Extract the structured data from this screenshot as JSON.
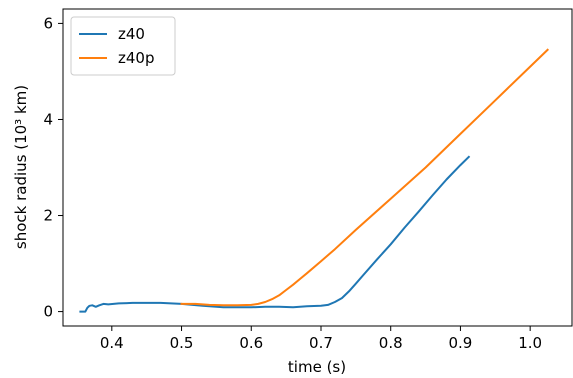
{
  "chart_data": {
    "type": "line",
    "xlabel": "time (s)",
    "ylabel": "shock radius (10³ km)",
    "xlim": [
      0.33,
      1.06
    ],
    "ylim": [
      -0.3,
      6.3
    ],
    "x_ticks": [
      0.4,
      0.5,
      0.6,
      0.7,
      0.8,
      0.9,
      1.0
    ],
    "y_ticks": [
      0,
      2,
      4,
      6
    ],
    "x_tick_labels": [
      "0.4",
      "0.5",
      "0.6",
      "0.7",
      "0.8",
      "0.9",
      "1.0"
    ],
    "y_tick_labels": [
      "0",
      "2",
      "4",
      "6"
    ],
    "grid": false,
    "legend_position": "top-left",
    "colors": {
      "z40": "#1f77b4",
      "z40p": "#ff7f0e"
    },
    "series": [
      {
        "name": "z40",
        "color": "#1f77b4",
        "x": [
          0.355,
          0.362,
          0.365,
          0.368,
          0.372,
          0.377,
          0.382,
          0.388,
          0.395,
          0.41,
          0.43,
          0.45,
          0.47,
          0.5,
          0.53,
          0.56,
          0.6,
          0.62,
          0.64,
          0.66,
          0.68,
          0.7,
          0.71,
          0.72,
          0.73,
          0.74,
          0.75,
          0.76,
          0.78,
          0.8,
          0.82,
          0.84,
          0.86,
          0.88,
          0.9,
          0.912
        ],
        "y": [
          0.0,
          0.0,
          0.08,
          0.12,
          0.13,
          0.1,
          0.13,
          0.16,
          0.15,
          0.17,
          0.18,
          0.18,
          0.18,
          0.16,
          0.12,
          0.09,
          0.09,
          0.1,
          0.1,
          0.09,
          0.11,
          0.12,
          0.14,
          0.2,
          0.28,
          0.42,
          0.58,
          0.75,
          1.08,
          1.4,
          1.75,
          2.08,
          2.42,
          2.75,
          3.05,
          3.22
        ]
      },
      {
        "name": "z40p",
        "color": "#ff7f0e",
        "x": [
          0.5,
          0.52,
          0.54,
          0.56,
          0.58,
          0.6,
          0.61,
          0.62,
          0.63,
          0.64,
          0.65,
          0.66,
          0.67,
          0.68,
          0.7,
          0.72,
          0.75,
          0.8,
          0.85,
          0.9,
          0.95,
          1.0,
          1.025
        ],
        "y": [
          0.16,
          0.16,
          0.14,
          0.13,
          0.13,
          0.14,
          0.16,
          0.2,
          0.26,
          0.34,
          0.45,
          0.56,
          0.68,
          0.8,
          1.05,
          1.3,
          1.7,
          2.35,
          3.0,
          3.7,
          4.4,
          5.1,
          5.45
        ]
      }
    ]
  }
}
